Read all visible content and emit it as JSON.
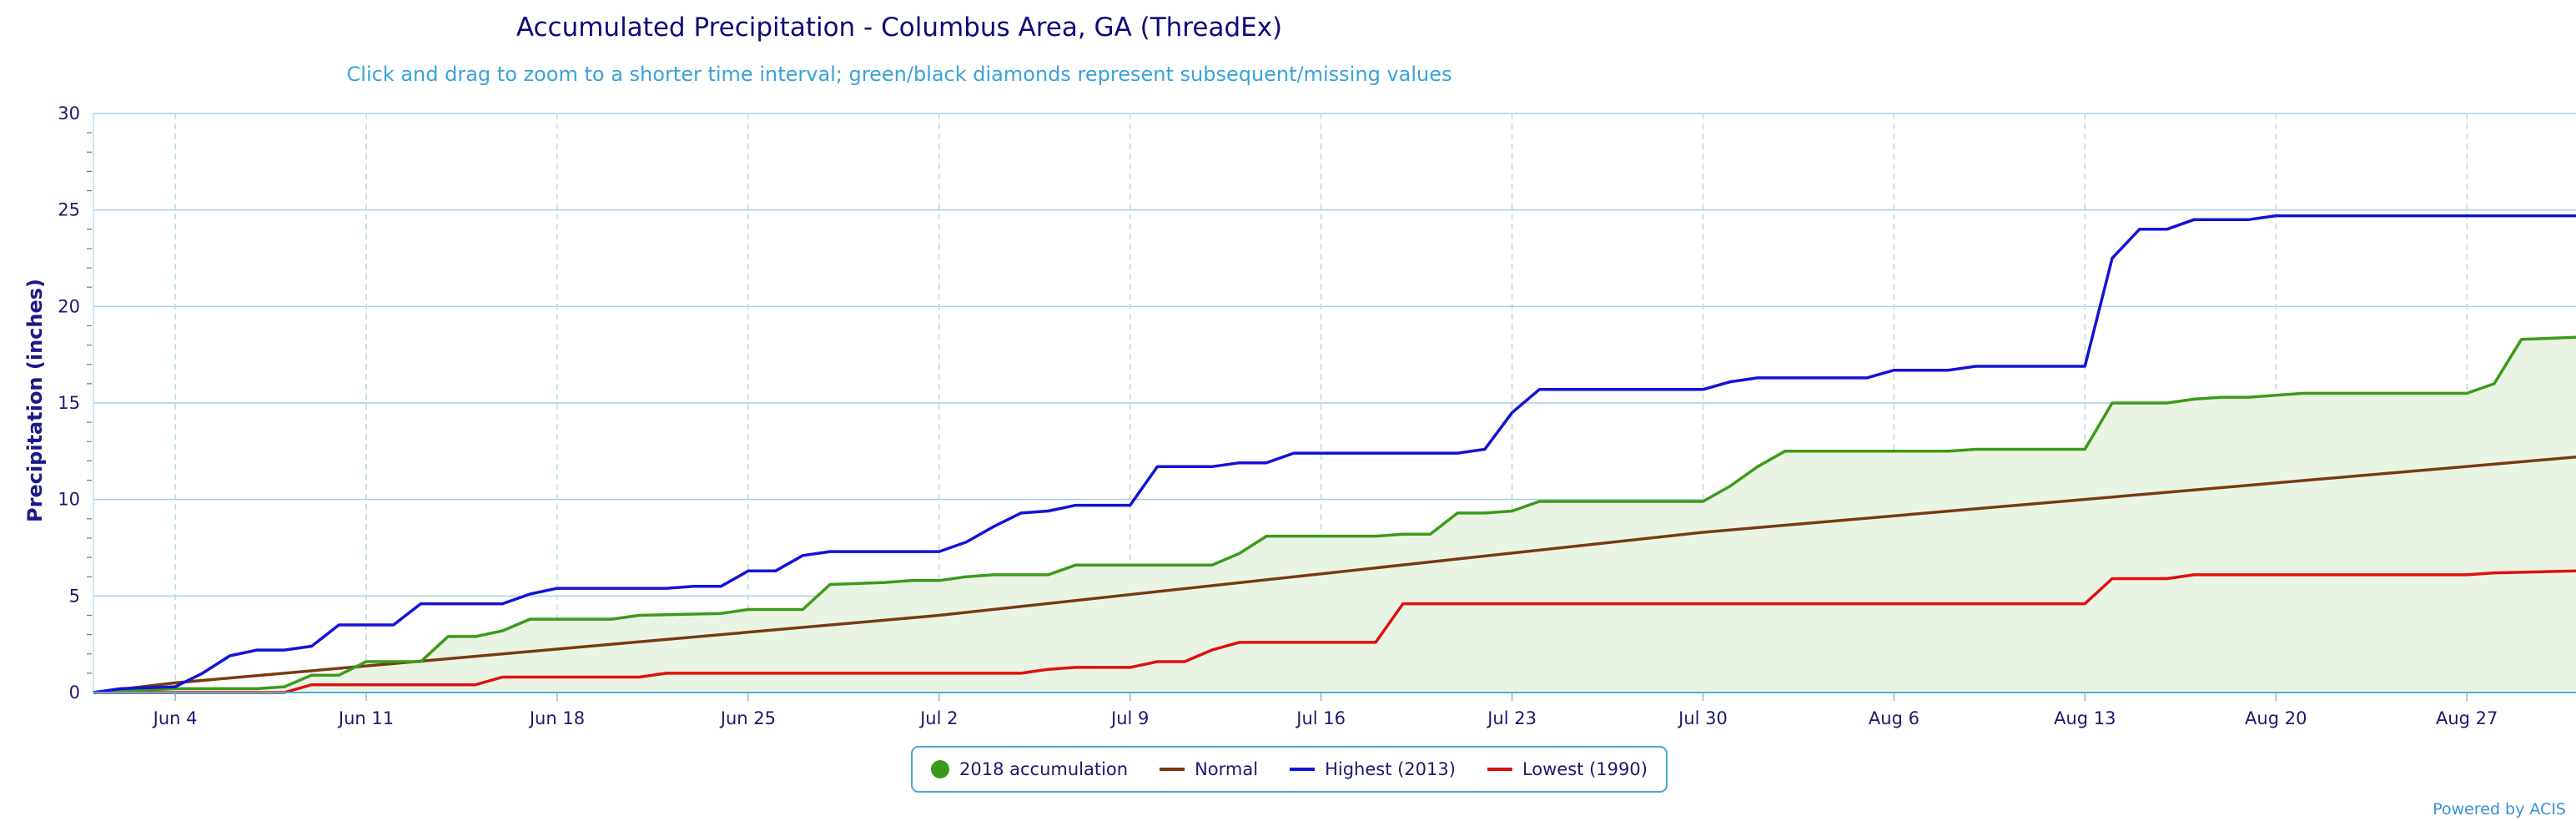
{
  "chart_data": {
    "type": "line",
    "title": "Accumulated Precipitation - Columbus Area, GA (ThreadEx)",
    "subtitle": "Click and drag to zoom to a shorter time interval; green/black diamonds represent subsequent/missing values",
    "ylabel": "Precipitation (inches)",
    "xlabel": "",
    "ylim": [
      0,
      30
    ],
    "yticks": [
      0,
      5,
      10,
      15,
      20,
      25,
      30
    ],
    "xlim": [
      "2018-06-01",
      "2018-08-31"
    ],
    "xticks": [
      {
        "date": "2018-06-04",
        "label": "Jun 4"
      },
      {
        "date": "2018-06-11",
        "label": "Jun 11"
      },
      {
        "date": "2018-06-18",
        "label": "Jun 18"
      },
      {
        "date": "2018-06-25",
        "label": "Jun 25"
      },
      {
        "date": "2018-07-02",
        "label": "Jul 2"
      },
      {
        "date": "2018-07-09",
        "label": "Jul 9"
      },
      {
        "date": "2018-07-16",
        "label": "Jul 16"
      },
      {
        "date": "2018-07-23",
        "label": "Jul 23"
      },
      {
        "date": "2018-07-30",
        "label": "Jul 30"
      },
      {
        "date": "2018-08-06",
        "label": "Aug 6"
      },
      {
        "date": "2018-08-13",
        "label": "Aug 13"
      },
      {
        "date": "2018-08-20",
        "label": "Aug 20"
      },
      {
        "date": "2018-08-27",
        "label": "Aug 27"
      }
    ],
    "grid": true,
    "legend_position": "bottom-center",
    "credit": "Powered by ACIS",
    "series": [
      {
        "name": "2018 accumulation",
        "color": "#3c9a1a",
        "fill": "#eaf4e4",
        "marker": "circle",
        "points": [
          [
            "2018-06-01",
            0.0
          ],
          [
            "2018-06-04",
            0.2
          ],
          [
            "2018-06-07",
            0.2
          ],
          [
            "2018-06-08",
            0.3
          ],
          [
            "2018-06-09",
            0.9
          ],
          [
            "2018-06-10",
            0.9
          ],
          [
            "2018-06-11",
            1.6
          ],
          [
            "2018-06-13",
            1.6
          ],
          [
            "2018-06-14",
            2.9
          ],
          [
            "2018-06-15",
            2.9
          ],
          [
            "2018-06-16",
            3.2
          ],
          [
            "2018-06-17",
            3.8
          ],
          [
            "2018-06-20",
            3.8
          ],
          [
            "2018-06-21",
            4.0
          ],
          [
            "2018-06-24",
            4.1
          ],
          [
            "2018-06-25",
            4.3
          ],
          [
            "2018-06-27",
            4.3
          ],
          [
            "2018-06-28",
            5.6
          ],
          [
            "2018-06-30",
            5.7
          ],
          [
            "2018-07-01",
            5.8
          ],
          [
            "2018-07-02",
            5.8
          ],
          [
            "2018-07-03",
            6.0
          ],
          [
            "2018-07-04",
            6.1
          ],
          [
            "2018-07-06",
            6.1
          ],
          [
            "2018-07-07",
            6.6
          ],
          [
            "2018-07-12",
            6.6
          ],
          [
            "2018-07-13",
            7.2
          ],
          [
            "2018-07-14",
            8.1
          ],
          [
            "2018-07-18",
            8.1
          ],
          [
            "2018-07-19",
            8.2
          ],
          [
            "2018-07-20",
            8.2
          ],
          [
            "2018-07-21",
            9.3
          ],
          [
            "2018-07-22",
            9.3
          ],
          [
            "2018-07-23",
            9.4
          ],
          [
            "2018-07-24",
            9.9
          ],
          [
            "2018-07-30",
            9.9
          ],
          [
            "2018-07-31",
            10.7
          ],
          [
            "2018-08-01",
            11.7
          ],
          [
            "2018-08-02",
            12.5
          ],
          [
            "2018-08-08",
            12.5
          ],
          [
            "2018-08-09",
            12.6
          ],
          [
            "2018-08-13",
            12.6
          ],
          [
            "2018-08-14",
            15.0
          ],
          [
            "2018-08-16",
            15.0
          ],
          [
            "2018-08-17",
            15.2
          ],
          [
            "2018-08-18",
            15.3
          ],
          [
            "2018-08-19",
            15.3
          ],
          [
            "2018-08-21",
            15.5
          ],
          [
            "2018-08-27",
            15.5
          ],
          [
            "2018-08-28",
            16.0
          ],
          [
            "2018-08-29",
            18.3
          ],
          [
            "2018-08-31",
            18.4
          ]
        ]
      },
      {
        "name": "Normal",
        "color": "#7a3a10",
        "points": [
          [
            "2018-06-01",
            0.0
          ],
          [
            "2018-06-04",
            0.5
          ],
          [
            "2018-07-02",
            4.0
          ],
          [
            "2018-07-30",
            8.3
          ],
          [
            "2018-08-31",
            12.2
          ]
        ]
      },
      {
        "name": "Highest (2013)",
        "color": "#1212d9",
        "points": [
          [
            "2018-06-01",
            0.0
          ],
          [
            "2018-06-02",
            0.2
          ],
          [
            "2018-06-04",
            0.3
          ],
          [
            "2018-06-05",
            1.0
          ],
          [
            "2018-06-06",
            1.9
          ],
          [
            "2018-06-07",
            2.2
          ],
          [
            "2018-06-08",
            2.2
          ],
          [
            "2018-06-09",
            2.4
          ],
          [
            "2018-06-10",
            3.5
          ],
          [
            "2018-06-12",
            3.5
          ],
          [
            "2018-06-13",
            4.6
          ],
          [
            "2018-06-16",
            4.6
          ],
          [
            "2018-06-17",
            5.1
          ],
          [
            "2018-06-18",
            5.4
          ],
          [
            "2018-06-22",
            5.4
          ],
          [
            "2018-06-23",
            5.5
          ],
          [
            "2018-06-24",
            5.5
          ],
          [
            "2018-06-25",
            6.3
          ],
          [
            "2018-06-26",
            6.3
          ],
          [
            "2018-06-27",
            7.1
          ],
          [
            "2018-06-28",
            7.3
          ],
          [
            "2018-07-02",
            7.3
          ],
          [
            "2018-07-03",
            7.8
          ],
          [
            "2018-07-04",
            8.6
          ],
          [
            "2018-07-05",
            9.3
          ],
          [
            "2018-07-06",
            9.4
          ],
          [
            "2018-07-07",
            9.7
          ],
          [
            "2018-07-09",
            9.7
          ],
          [
            "2018-07-10",
            11.7
          ],
          [
            "2018-07-12",
            11.7
          ],
          [
            "2018-07-13",
            11.9
          ],
          [
            "2018-07-14",
            11.9
          ],
          [
            "2018-07-15",
            12.4
          ],
          [
            "2018-07-21",
            12.4
          ],
          [
            "2018-07-22",
            12.6
          ],
          [
            "2018-07-23",
            14.5
          ],
          [
            "2018-07-24",
            15.7
          ],
          [
            "2018-07-30",
            15.7
          ],
          [
            "2018-07-31",
            16.1
          ],
          [
            "2018-08-01",
            16.3
          ],
          [
            "2018-08-05",
            16.3
          ],
          [
            "2018-08-06",
            16.7
          ],
          [
            "2018-08-08",
            16.7
          ],
          [
            "2018-08-09",
            16.9
          ],
          [
            "2018-08-13",
            16.9
          ],
          [
            "2018-08-14",
            22.5
          ],
          [
            "2018-08-15",
            24.0
          ],
          [
            "2018-08-16",
            24.0
          ],
          [
            "2018-08-17",
            24.5
          ],
          [
            "2018-08-19",
            24.5
          ],
          [
            "2018-08-20",
            24.7
          ],
          [
            "2018-08-31",
            24.7
          ]
        ]
      },
      {
        "name": "Lowest (1990)",
        "color": "#e01010",
        "points": [
          [
            "2018-06-01",
            0.0
          ],
          [
            "2018-06-08",
            0.0
          ],
          [
            "2018-06-09",
            0.4
          ],
          [
            "2018-06-15",
            0.4
          ],
          [
            "2018-06-16",
            0.8
          ],
          [
            "2018-06-21",
            0.8
          ],
          [
            "2018-06-22",
            1.0
          ],
          [
            "2018-07-05",
            1.0
          ],
          [
            "2018-07-06",
            1.2
          ],
          [
            "2018-07-07",
            1.3
          ],
          [
            "2018-07-08",
            1.3
          ],
          [
            "2018-07-09",
            1.3
          ],
          [
            "2018-07-10",
            1.6
          ],
          [
            "2018-07-11",
            1.6
          ],
          [
            "2018-07-12",
            2.2
          ],
          [
            "2018-07-13",
            2.6
          ],
          [
            "2018-07-18",
            2.6
          ],
          [
            "2018-07-19",
            4.6
          ],
          [
            "2018-08-13",
            4.6
          ],
          [
            "2018-08-14",
            5.9
          ],
          [
            "2018-08-16",
            5.9
          ],
          [
            "2018-08-17",
            6.1
          ],
          [
            "2018-08-27",
            6.1
          ],
          [
            "2018-08-28",
            6.2
          ],
          [
            "2018-08-31",
            6.3
          ]
        ]
      }
    ]
  }
}
